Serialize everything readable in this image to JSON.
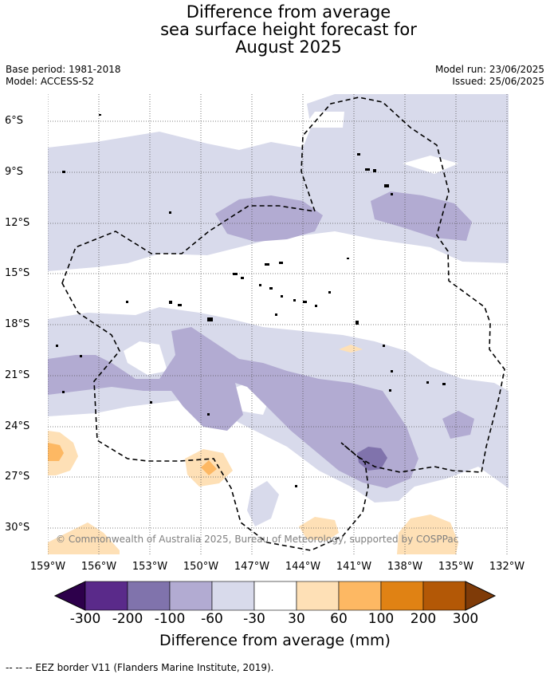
{
  "title": {
    "line1": "Difference from average",
    "line2": "sea surface height forecast for",
    "line3": "August 2025"
  },
  "meta": {
    "base_period": "Base period: 1981-2018",
    "model": "Model: ACCESS-S2",
    "model_run": "Model run: 23/06/2025",
    "issued": "Issued: 25/06/2025"
  },
  "map": {
    "lat_labels": [
      "6°S",
      "9°S",
      "12°S",
      "15°S",
      "18°S",
      "21°S",
      "24°S",
      "27°S",
      "30°S"
    ],
    "lon_labels": [
      "159°W",
      "156°W",
      "153°W",
      "150°W",
      "147°W",
      "144°W",
      "141°W",
      "138°W",
      "135°W",
      "132°W"
    ],
    "copyright": "© Commonwealth of Australia 2025, Bureau of Meteorology, supported by COSPPac"
  },
  "colorbar": {
    "tick_labels": [
      "-300",
      "-200",
      "-100",
      "-60",
      "-30",
      "30",
      "60",
      "100",
      "200",
      "300"
    ],
    "colors": [
      "#2d004b",
      "#5a2a8a",
      "#8073ac",
      "#b2abd2",
      "#d8daeb",
      "#ffffff",
      "#fee0b6",
      "#fdb863",
      "#e08214",
      "#b35806",
      "#7f3b08"
    ],
    "title": "Difference from average (mm)"
  },
  "footer": {
    "legend": "--  --  -- EEZ border V11 (Flanders Marine Institute, 2019)."
  }
}
